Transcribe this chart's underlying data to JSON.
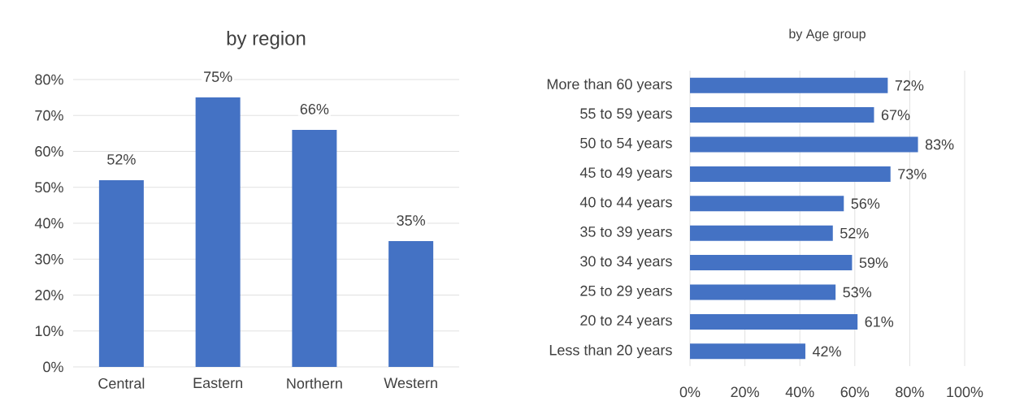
{
  "chart_data": [
    {
      "type": "bar",
      "title": "by region",
      "categories": [
        "Central",
        "Eastern",
        "Northern",
        "Western"
      ],
      "values": [
        52,
        75,
        66,
        35
      ],
      "value_labels": [
        "52%",
        "75%",
        "66%",
        "35%"
      ],
      "color": "#4472c4",
      "ylim": [
        0,
        80
      ],
      "yticks": [
        {
          "value": 0,
          "label": "0%"
        },
        {
          "value": 10,
          "label": "10%"
        },
        {
          "value": 20,
          "label": "20%"
        },
        {
          "value": 30,
          "label": "30%"
        },
        {
          "value": 40,
          "label": "40%"
        },
        {
          "value": 50,
          "label": "50%"
        },
        {
          "value": 60,
          "label": "60%"
        },
        {
          "value": 70,
          "label": "70%"
        },
        {
          "value": 80,
          "label": "80%"
        }
      ],
      "grid": "y"
    },
    {
      "type": "bar",
      "orientation": "horizontal",
      "title": "by Age group",
      "categories": [
        "More than 60 years",
        "55 to 59 years",
        "50 to 54 years",
        "45 to 49 years",
        "40 to 44 years",
        "35 to 39 years",
        "30 to 34 years",
        "25  to 29 years",
        "20  to 24 years",
        "Less than 20 years"
      ],
      "values": [
        72,
        67,
        83,
        73,
        56,
        52,
        59,
        53,
        61,
        42
      ],
      "value_labels": [
        "72%",
        "67%",
        "83%",
        "73%",
        "56%",
        "52%",
        "59%",
        "53%",
        "61%",
        "42%"
      ],
      "color": "#4472c4",
      "xlim": [
        0,
        100
      ],
      "xticks": [
        {
          "value": 0,
          "label": "0%"
        },
        {
          "value": 20,
          "label": "20%"
        },
        {
          "value": 40,
          "label": "40%"
        },
        {
          "value": 60,
          "label": "60%"
        },
        {
          "value": 80,
          "label": "80%"
        },
        {
          "value": 100,
          "label": "100%"
        }
      ],
      "grid": "x"
    }
  ]
}
